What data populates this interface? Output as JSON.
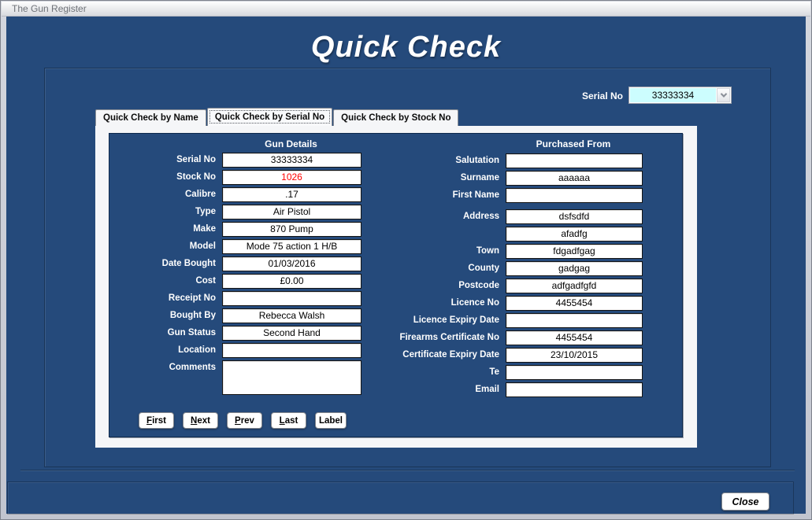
{
  "window": {
    "title": "The Gun Register"
  },
  "page_title": "Quick Check",
  "serial_selector": {
    "label": "Serial No",
    "value": "33333334",
    "icon": "chevron-down-icon",
    "field_bg": "#CCFDFE"
  },
  "tabs": [
    {
      "label": "Quick Check by Name",
      "active": false
    },
    {
      "label": "Quick Check by Serial No",
      "active": true
    },
    {
      "label": "Quick Check by Stock No",
      "active": false
    }
  ],
  "panels": {
    "gun_details": {
      "header": "Gun Details",
      "fields": [
        {
          "label": "Serial No",
          "value": "33333334"
        },
        {
          "label": "Stock No",
          "value": "1026",
          "color": "#FF0000"
        },
        {
          "label": "Calibre",
          "value": ".17"
        },
        {
          "label": "Type",
          "value": "Air Pistol"
        },
        {
          "label": "Make",
          "value": "870 Pump"
        },
        {
          "label": "Model",
          "value": "Mode 75 action 1 H/B"
        },
        {
          "label": "Date Bought",
          "value": "01/03/2016"
        },
        {
          "label": "Cost",
          "value": "£0.00"
        },
        {
          "label": "Receipt No",
          "value": ""
        },
        {
          "label": "Bought By",
          "value": "Rebecca Walsh"
        },
        {
          "label": "Gun Status",
          "value": "Second Hand"
        },
        {
          "label": "Location",
          "value": ""
        },
        {
          "label": "Comments",
          "value": "",
          "multiline": true
        }
      ]
    },
    "purchased_from": {
      "header": "Purchased From",
      "fields": [
        {
          "label": "Salutation",
          "value": ""
        },
        {
          "label": "Surname",
          "value": "aaaaaa"
        },
        {
          "label": "First Name",
          "value": ""
        },
        {
          "label": "Address",
          "value": "dsfsdfd",
          "spacer_before": true
        },
        {
          "label": "",
          "value": "afadfg",
          "name": "address-line-2"
        },
        {
          "label": "Town",
          "value": "fdgadfgag"
        },
        {
          "label": "County",
          "value": "gadgag"
        },
        {
          "label": "Postcode",
          "value": "adfgadfgfd"
        },
        {
          "label": "Licence No",
          "value": "4455454"
        },
        {
          "label": "Licence Expiry Date",
          "value": ""
        },
        {
          "label": "Firearms Certificate No",
          "value": "4455454"
        },
        {
          "label": "Certificate Expiry Date",
          "value": "23/10/2015"
        },
        {
          "label": "Te",
          "value": ""
        },
        {
          "label": "Email",
          "value": ""
        }
      ]
    }
  },
  "nav_buttons": [
    {
      "label": "First",
      "underline_first": true
    },
    {
      "label": "Next",
      "underline_first": true
    },
    {
      "label": "Prev",
      "underline_first": true
    },
    {
      "label": "Last",
      "underline_first": true
    },
    {
      "label": "Label",
      "underline_first": false
    }
  ],
  "close_button": {
    "label": "Close"
  },
  "colors": {
    "client_bg": "#254A7B",
    "serial_field_bg": "#CCFDFE",
    "stock_no_value": "#FF0000",
    "field_text": "#000000",
    "label_text": "#FFFFFF"
  }
}
